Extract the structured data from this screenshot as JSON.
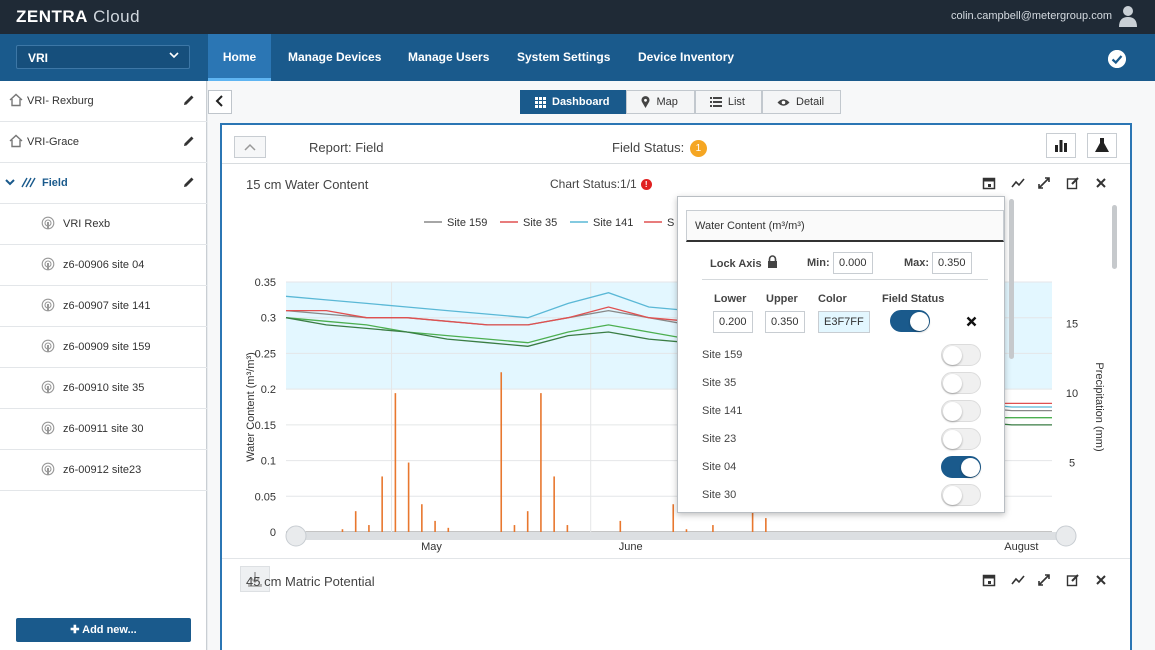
{
  "app": {
    "brand_bold": "ZENTRA",
    "brand_light": " Cloud",
    "user_email": "colin.campbell@metergroup.com"
  },
  "nav": {
    "site_selector": "VRI",
    "items": [
      {
        "label": "Home",
        "active": true
      },
      {
        "label": "Manage Devices"
      },
      {
        "label": "Manage Users"
      },
      {
        "label": "System Settings"
      },
      {
        "label": "Device Inventory"
      }
    ]
  },
  "sidebar": {
    "items": [
      {
        "label": "VRI- Rexburg",
        "type": "site"
      },
      {
        "label": "VRI-Grace",
        "type": "site"
      },
      {
        "label": "Field",
        "type": "field"
      },
      {
        "label": "VRI Rexb",
        "type": "device"
      },
      {
        "label": "z6-00906 site 04",
        "type": "device"
      },
      {
        "label": "z6-00907 site 141",
        "type": "device"
      },
      {
        "label": "z6-00909 site 159",
        "type": "device"
      },
      {
        "label": "z6-00910 site 35",
        "type": "device"
      },
      {
        "label": "z6-00911 site 30",
        "type": "device"
      },
      {
        "label": "z6-00912 site23",
        "type": "device"
      }
    ],
    "add_label": "Add new..."
  },
  "tabs": [
    {
      "label": "Dashboard",
      "icon": "grid-icon",
      "active": true
    },
    {
      "label": "Map",
      "icon": "map-pin-icon"
    },
    {
      "label": "List",
      "icon": "list-icon"
    },
    {
      "label": "Detail",
      "icon": "eye-icon"
    }
  ],
  "report": {
    "title": "Report: Field",
    "field_status_label": "Field Status:",
    "field_status_count": "1",
    "chart1_title": "15 cm Water Content",
    "chart_status": "Chart Status:1/1",
    "chart2_title": "45 cm Matric Potential"
  },
  "popup": {
    "title": "Water Content (m³/m³)",
    "lock_axis": "Lock Axis",
    "min_label": "Min:",
    "min_value": "0.000",
    "max_label": "Max:",
    "max_value": "0.350",
    "lower_label": "Lower",
    "upper_label": "Upper",
    "color_label": "Color",
    "field_status_label": "Field Status",
    "lower_value": "0.200",
    "upper_value": "0.350",
    "color_value": "E3F7FF",
    "field_status_on": true,
    "sites": [
      {
        "label": "Site 159",
        "on": false
      },
      {
        "label": "Site 35",
        "on": false
      },
      {
        "label": "Site 141",
        "on": false
      },
      {
        "label": "Site 23",
        "on": false
      },
      {
        "label": "Site 04",
        "on": true
      },
      {
        "label": "Site 30",
        "on": false
      }
    ]
  },
  "chart_data": {
    "type": "line",
    "title": "",
    "ylabel": "Water Content (m³/m³)",
    "y2label": "Precipitation (mm)",
    "ylim": [
      0,
      0.35
    ],
    "y2lim": [
      0,
      18
    ],
    "yticks": [
      "0.35",
      "0.3",
      "0.25",
      "0.2",
      "0.15",
      "0.1",
      "0.05",
      "0"
    ],
    "y2ticks": [
      "15",
      "10",
      "5",
      "0"
    ],
    "xticks": [
      "May",
      "June",
      "August"
    ],
    "legend": [
      "Site 159",
      "Site 35",
      "Site 141",
      "S"
    ],
    "legend_position": "top",
    "band": {
      "lower": 0.2,
      "upper": 0.35,
      "color": "#E3F7FF"
    },
    "colors": {
      "Site 159": "#888888",
      "Site 35": "#e05050",
      "Site 141": "#5ab8d6",
      "Site 23": "#4caf50",
      "Site 04": "#3a7d44",
      "precip": "#e8772e"
    },
    "series": [
      {
        "name": "Site 159",
        "values": [
          0.31,
          0.305,
          0.3,
          0.3,
          0.295,
          0.29,
          0.29,
          0.3,
          0.31,
          0.3,
          0.29,
          0.28,
          0.26,
          0.24,
          0.22,
          0.2,
          0.18,
          0.175,
          0.17,
          0.17
        ]
      },
      {
        "name": "Site 35",
        "values": [
          0.31,
          0.31,
          0.3,
          0.3,
          0.295,
          0.29,
          0.29,
          0.3,
          0.315,
          0.3,
          0.295,
          0.29,
          0.27,
          0.25,
          0.23,
          0.21,
          0.19,
          0.18,
          0.18,
          0.18
        ]
      },
      {
        "name": "Site 141",
        "values": [
          0.33,
          0.325,
          0.32,
          0.315,
          0.31,
          0.305,
          0.3,
          0.32,
          0.335,
          0.315,
          0.31,
          0.3,
          0.285,
          0.27,
          0.25,
          0.22,
          0.2,
          0.18,
          0.175,
          0.175
        ]
      },
      {
        "name": "Site 23",
        "values": [
          0.3,
          0.295,
          0.29,
          0.28,
          0.275,
          0.27,
          0.265,
          0.28,
          0.29,
          0.28,
          0.27,
          0.26,
          0.24,
          0.23,
          0.21,
          0.19,
          0.17,
          0.16,
          0.16,
          0.16
        ]
      },
      {
        "name": "Site 04",
        "values": [
          0.3,
          0.29,
          0.285,
          0.28,
          0.27,
          0.265,
          0.26,
          0.275,
          0.28,
          0.27,
          0.265,
          0.255,
          0.235,
          0.22,
          0.2,
          0.18,
          0.165,
          0.155,
          0.15,
          0.15
        ]
      }
    ],
    "precip": [
      0,
      0,
      0.2,
      1.5,
      0.5,
      4,
      10,
      5,
      2,
      0.8,
      0.3,
      0,
      0,
      0,
      11.5,
      0.5,
      1.5,
      10,
      4,
      0.5,
      0,
      0,
      0,
      0.8,
      0,
      0,
      0,
      2,
      0.2,
      0,
      0.5,
      0,
      0,
      10,
      1,
      0,
      0,
      0,
      0,
      0
    ]
  }
}
